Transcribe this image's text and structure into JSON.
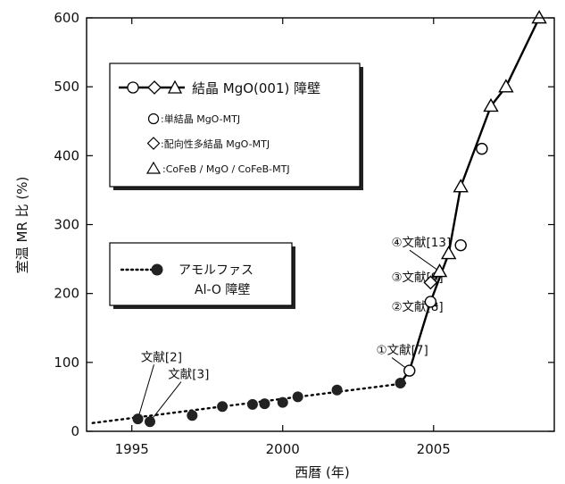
{
  "chart_data": {
    "type": "line",
    "xlabel": "西暦 (年)",
    "ylabel": "室温 MR 比 (%)",
    "xlim": [
      1993.5,
      2009
    ],
    "ylim": [
      0,
      600
    ],
    "xticks": [
      1995,
      2000,
      2005
    ],
    "yticks": [
      0,
      100,
      200,
      300,
      400,
      500,
      600
    ],
    "grid": false,
    "series": [
      {
        "name": "アモルファス Al-O 障壁",
        "name_lines": [
          "アモルファス",
          "Al-O 障壁"
        ],
        "marker": "filled-circle",
        "line": "dotted",
        "points": [
          [
            1995.2,
            18
          ],
          [
            1995.6,
            14
          ],
          [
            1997.0,
            23
          ],
          [
            1998.0,
            36
          ],
          [
            1999.0,
            39
          ],
          [
            1999.4,
            40
          ],
          [
            2000.0,
            42
          ],
          [
            2000.5,
            50
          ],
          [
            2001.8,
            60
          ],
          [
            2003.9,
            70
          ]
        ],
        "trend": [
          [
            1993.7,
            12
          ],
          [
            2004.1,
            70
          ]
        ]
      },
      {
        "name": "単結晶 MgO-MTJ",
        "marker": "open-circle",
        "points": [
          [
            2004.2,
            88
          ],
          [
            2004.9,
            188
          ],
          [
            2005.9,
            270
          ],
          [
            2006.6,
            410
          ]
        ]
      },
      {
        "name": "配向性多結晶 MgO-MTJ",
        "marker": "open-diamond",
        "points": [
          [
            2004.9,
            216
          ]
        ]
      },
      {
        "name": "CoFeB / MgO / CoFeB-MTJ",
        "marker": "open-triangle",
        "points": [
          [
            2005.2,
            232
          ],
          [
            2005.5,
            258
          ],
          [
            2005.9,
            355
          ],
          [
            2006.9,
            472
          ],
          [
            2007.4,
            500
          ],
          [
            2008.5,
            600
          ]
        ]
      }
    ],
    "mgo_trend": [
      [
        2003.9,
        70
      ],
      [
        2004.2,
        88
      ],
      [
        2004.9,
        188
      ],
      [
        2005.5,
        258
      ],
      [
        2005.9,
        355
      ],
      [
        2006.9,
        472
      ],
      [
        2007.4,
        500
      ],
      [
        2008.5,
        600
      ]
    ],
    "legend_mgo": {
      "title": "結晶 MgO(001) 障壁",
      "items": [
        {
          "marker": "open-circle",
          "label": ":単結晶 MgO-MTJ"
        },
        {
          "marker": "open-diamond",
          "label": ":配向性多結晶 MgO-MTJ"
        },
        {
          "marker": "open-triangle",
          "label": ":CoFeB / MgO / CoFeB-MTJ"
        }
      ]
    },
    "annotations": [
      {
        "text": "文献[2]",
        "point": [
          1995.2,
          18
        ],
        "text_at": [
          1995.3,
          102
        ]
      },
      {
        "text": "文献[3]",
        "point": [
          1995.6,
          14
        ],
        "text_at": [
          1996.2,
          77
        ]
      },
      {
        "text": "①文献[7]",
        "point": [
          2004.2,
          88
        ],
        "text_at": [
          2003.1,
          112
        ]
      },
      {
        "text": "②文献[8]",
        "point": [
          2004.9,
          188
        ],
        "text_at": [
          2003.6,
          175
        ]
      },
      {
        "text": "③文献[9]",
        "point": [
          2004.9,
          216
        ],
        "text_at": [
          2003.6,
          218
        ]
      },
      {
        "text": "④文献[13]",
        "point": [
          2005.2,
          232
        ],
        "text_at": [
          2003.6,
          268
        ]
      }
    ]
  }
}
